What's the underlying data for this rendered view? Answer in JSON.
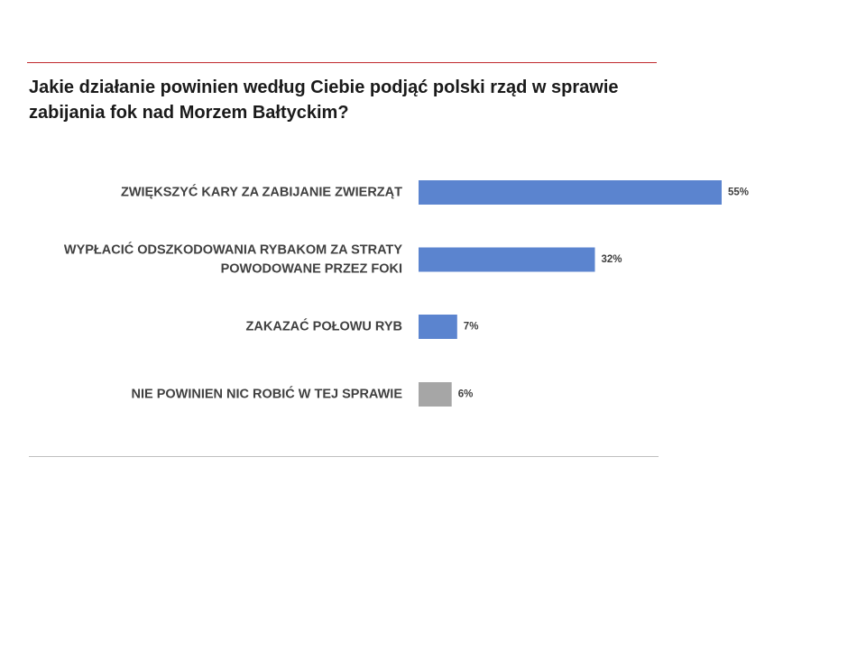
{
  "slide": {
    "title_lines": [
      "Jakie działanie powinien według Ciebie podjąć polski rząd w sprawie",
      "zabijania fok nad Morzem Bałtyckim?"
    ]
  },
  "colors": {
    "top_rule": "#c0282d",
    "bottom_rule": "#bfbfbf",
    "bar_primary": "#5b84cf",
    "bar_neutral": "#a6a6a6",
    "label_text": "#404040",
    "title_text": "#1a1a1a"
  },
  "chart_data": {
    "type": "bar",
    "orientation": "horizontal",
    "title": "Jakie działanie powinien według Ciebie podjąć polski rząd w sprawie zabijania fok nad Morzem Bałtyckim?",
    "categories": [
      [
        "ZWIĘKSZYĆ KARY ZA ZABIJANIE ZWIERZĄT"
      ],
      [
        "WYPŁACIĆ ODSZKODOWANIA RYBAKOM ZA STRATY",
        "POWODOWANE PRZEZ FOKI"
      ],
      [
        "ZAKAZAĆ POŁOWU RYB"
      ],
      [
        "NIE POWINIEN NIC ROBIĆ W TEJ SPRAWIE"
      ]
    ],
    "values": [
      55,
      32,
      7,
      6
    ],
    "value_labels": [
      "55%",
      "32%",
      "7%",
      "6%"
    ],
    "bar_colors": [
      "#5b84cf",
      "#5b84cf",
      "#5b84cf",
      "#a6a6a6"
    ],
    "xlim": [
      0,
      100
    ],
    "unit": "%",
    "grid": false,
    "legend": "none"
  }
}
